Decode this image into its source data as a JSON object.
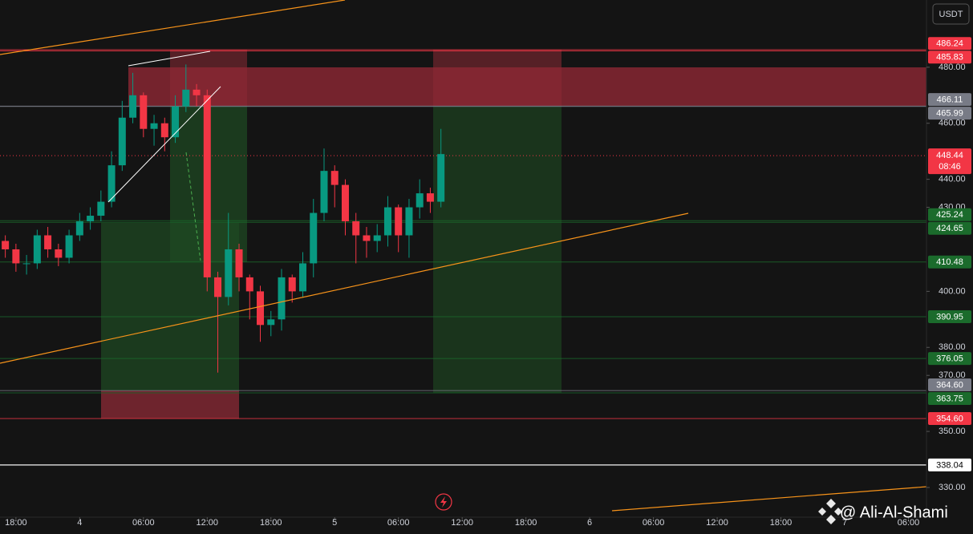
{
  "chart_data": {
    "type": "candlestick",
    "quote_currency": "USDT",
    "watermark": "@ Ali-Al-Shami",
    "up_color": "#089981",
    "down_color": "#f23645",
    "x": [
      -1,
      0,
      1,
      2,
      3,
      4,
      5,
      6,
      7,
      8,
      9,
      10,
      11,
      12,
      13,
      14,
      15,
      16,
      17,
      18,
      19,
      20,
      21,
      22,
      23,
      24,
      25,
      26,
      27,
      28,
      29,
      30,
      31,
      32,
      33,
      34,
      35,
      36,
      37,
      38,
      39,
      40
    ],
    "open": [
      418,
      415,
      410,
      410,
      420,
      415,
      412,
      420,
      425,
      427,
      432,
      445,
      462,
      470,
      458,
      460,
      455,
      466,
      472,
      470,
      405,
      398,
      415,
      405,
      400,
      388,
      390,
      405,
      400,
      410,
      428,
      443,
      438,
      425,
      420,
      418,
      420,
      430,
      420,
      430,
      435,
      432
    ],
    "high": [
      420,
      417,
      413,
      422,
      423,
      417,
      422,
      428,
      430,
      436,
      450,
      468,
      478,
      471,
      463,
      462,
      470,
      481,
      474,
      472,
      407,
      428,
      417,
      406,
      402,
      393,
      408,
      406,
      414,
      433,
      451,
      445,
      440,
      428,
      423,
      424,
      434,
      431,
      433,
      440,
      437,
      458
    ],
    "low": [
      412,
      407,
      406,
      408,
      412,
      409,
      410,
      418,
      422,
      425,
      430,
      443,
      460,
      455,
      452,
      450,
      453,
      464,
      466,
      400,
      371,
      395,
      400,
      390,
      382,
      384,
      386,
      396,
      398,
      405,
      425,
      430,
      420,
      410,
      412,
      414,
      416,
      414,
      412,
      426,
      428,
      430
    ],
    "close": [
      415,
      410,
      410,
      420,
      415,
      412,
      420,
      425,
      427,
      432,
      445,
      462,
      470,
      458,
      460,
      455,
      466,
      472,
      470,
      405,
      398,
      415,
      405,
      400,
      388,
      390,
      405,
      400,
      410,
      428,
      443,
      438,
      425,
      420,
      418,
      420,
      430,
      420,
      430,
      435,
      432,
      449
    ],
    "xlim": [
      -1.5,
      85.7
    ],
    "ylim": [
      319.4,
      504.0
    ],
    "xticks": [
      {
        "value": 0,
        "label": "18:00"
      },
      {
        "value": 6,
        "label": "4"
      },
      {
        "value": 12,
        "label": "06:00"
      },
      {
        "value": 18,
        "label": "12:00"
      },
      {
        "value": 24,
        "label": "18:00"
      },
      {
        "value": 30,
        "label": "5"
      },
      {
        "value": 36,
        "label": "06:00"
      },
      {
        "value": 42,
        "label": "12:00"
      },
      {
        "value": 48,
        "label": "18:00"
      },
      {
        "value": 54,
        "label": "6"
      },
      {
        "value": 60,
        "label": "06:00"
      },
      {
        "value": 66,
        "label": "12:00"
      },
      {
        "value": 72,
        "label": "18:00"
      },
      {
        "value": 78,
        "label": "7"
      },
      {
        "value": 84,
        "label": "06:00"
      }
    ],
    "yticks": [
      {
        "value": 480,
        "label": "480.00"
      },
      {
        "value": 460,
        "label": "460.00"
      },
      {
        "value": 440,
        "label": "440.00"
      },
      {
        "value": 430,
        "label": "430.00"
      },
      {
        "value": 400,
        "label": "400.00"
      },
      {
        "value": 380,
        "label": "380.00"
      },
      {
        "value": 370,
        "label": "370.00"
      },
      {
        "value": 350,
        "label": "350.00"
      },
      {
        "value": 330,
        "label": "330.00"
      }
    ],
    "price_levels": [
      {
        "value": 486.24,
        "label": "486.24",
        "color": "#f23645"
      },
      {
        "value": 485.83,
        "label": "485.83",
        "color": "#f23645"
      },
      {
        "value": 466.11,
        "label": "466.11",
        "color": "#787b86"
      },
      {
        "value": 465.99,
        "label": "465.99",
        "color": "#787b86"
      },
      {
        "value": 425.24,
        "label": "425.24",
        "color": "#1b6b2c"
      },
      {
        "value": 424.65,
        "label": "424.65",
        "color": "#1b6b2c"
      },
      {
        "value": 410.48,
        "label": "410.48",
        "color": "#1b6b2c"
      },
      {
        "value": 390.95,
        "label": "390.95",
        "color": "#1b6b2c"
      },
      {
        "value": 376.05,
        "label": "376.05",
        "color": "#1b6b2c"
      },
      {
        "value": 364.6,
        "label": "364.60",
        "color": "#787b86"
      },
      {
        "value": 363.75,
        "label": "363.75",
        "color": "#1b6b2c"
      },
      {
        "value": 354.6,
        "label": "354.60",
        "color": "#f23645"
      },
      {
        "value": 338.04,
        "label": "338.04",
        "color": "#ffffff"
      }
    ],
    "current_price": {
      "value": 448.44,
      "label": "448.44",
      "countdown": "08:46",
      "color": "#f23645"
    }
  }
}
